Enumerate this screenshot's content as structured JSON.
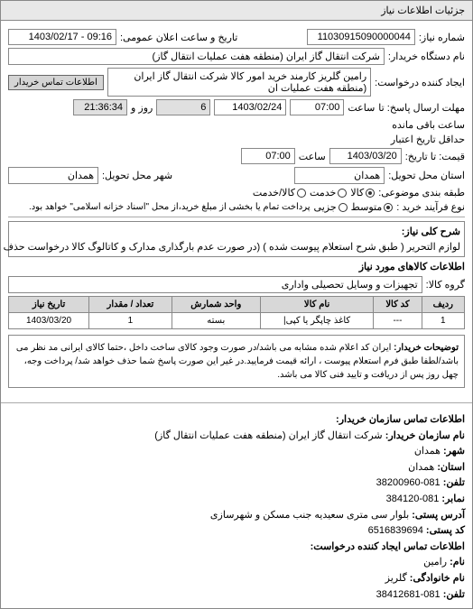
{
  "tab": {
    "title": "جزئیات اطلاعات نیاز"
  },
  "header": {
    "req_no_label": "شماره نیاز:",
    "req_no": "11030915090000044",
    "date_label": "تاریخ و ساعت اعلان عمومی:",
    "date": "09:16 - 1403/02/17",
    "buyer_org_label": "نام دستگاه خریدار:",
    "buyer_org": "شرکت انتقال گاز ایران (منطقه هفت عملیات انتقال گاز)",
    "requester_label": "ایجاد کننده درخواست:",
    "requester": "رامین گلریز کارمند خرید امور کالا شرکت انتقال گاز ایران (منطقه هفت عملیات ان",
    "contact_btn": "اطلاعات تماس خریدار"
  },
  "deadline": {
    "send_until_label": "مهلت ارسال پاسخ: تا",
    "send_time_label": "ساعت",
    "send_time": "07:00",
    "send_date": "1403/02/24",
    "days_label": "روز و",
    "days": "6",
    "remain_label": "ساعت باقی مانده",
    "remain": "21:36:34",
    "validity_label": "حداقل تاریخ اعتبار",
    "price_label": "قیمت: تا تاریخ:",
    "price_date": "1403/03/20",
    "price_time": "07:00"
  },
  "location": {
    "province_label": "استان محل تحویل:",
    "province": "همدان",
    "city_label": "شهر محل تحویل:",
    "city": "همدان"
  },
  "packaging": {
    "label": "طبقه بندی موضوعی:",
    "opt1": "کالا",
    "opt2": "خدمت",
    "opt3": "کالا/خدمت"
  },
  "process": {
    "label": "نوع فرآیند خرید :",
    "opt1": "متوسط",
    "opt2": "جزیی",
    "note": "پرداخت تمام یا بخشی از مبلغ خرید،از محل \"اسناد خزانه اسلامی\" خواهد بود."
  },
  "need": {
    "label": "شرح کلی نیاز:",
    "text": "لوازم التحریر ( طبق شرح استعلام پیوست شده ) (در صورت عدم بارگذاری مدارک و کاتالوگ کالا درخواست حذف می گردد)"
  },
  "goods": {
    "title": "اطلاعات کالاهای مورد نیاز",
    "group_label": "گروه کالا:",
    "group": "تجهیزات و وسایل تحصیلی واداری",
    "columns": [
      "ردیف",
      "کد کالا",
      "نام کالا",
      "واحد شمارش",
      "تعداد / مقدار",
      "تاریخ نیاز"
    ],
    "rows": [
      [
        "1",
        "---",
        "کاغذ چاپگر یا کپی|",
        "بسته",
        "1",
        "1403/03/20"
      ]
    ]
  },
  "buyer_note": {
    "label": "توضیحات خریدار:",
    "text": "ایران کد اعلام شده مشابه می باشد/در صورت وجود کالای ساخت داخل ،حتما کالای ایرانی مد نظر می باشد/لطفا طبق فرم استعلام پیوست ، ارائه قیمت فرمایید.در غیر این صورت پاسخ شما حذف خواهد شد/ پرداخت وجه، چهل روز پس از دریافت و تایید فنی کالا می باشد."
  },
  "contact": {
    "title": "اطلاعات تماس سازمان خریدار:",
    "org_label": "نام سازمان خریدار:",
    "org": "شرکت انتقال گاز ایران (منطقه هفت عملیات انتقال گاز)",
    "city_label": "شهر:",
    "city": "همدان",
    "province_label": "استان:",
    "province": "همدان",
    "phone_label": "تلفن:",
    "phone": "081-38200960",
    "fax_label": "نمابر:",
    "fax": "081-384120",
    "addr_label": "آدرس پستی:",
    "addr": "بلوار سی متری سعیدیه جنب مسکن و شهرسازی",
    "postal_label": "کد پستی:",
    "postal": "6516839694",
    "req_contact_title": "اطلاعات تماس ایجاد کننده درخواست:",
    "name_label": "نام:",
    "name": "رامین",
    "lname_label": "نام خانوادگی:",
    "lname": "گلریز",
    "tel_label": "تلفن:",
    "tel": "081-38412681"
  }
}
